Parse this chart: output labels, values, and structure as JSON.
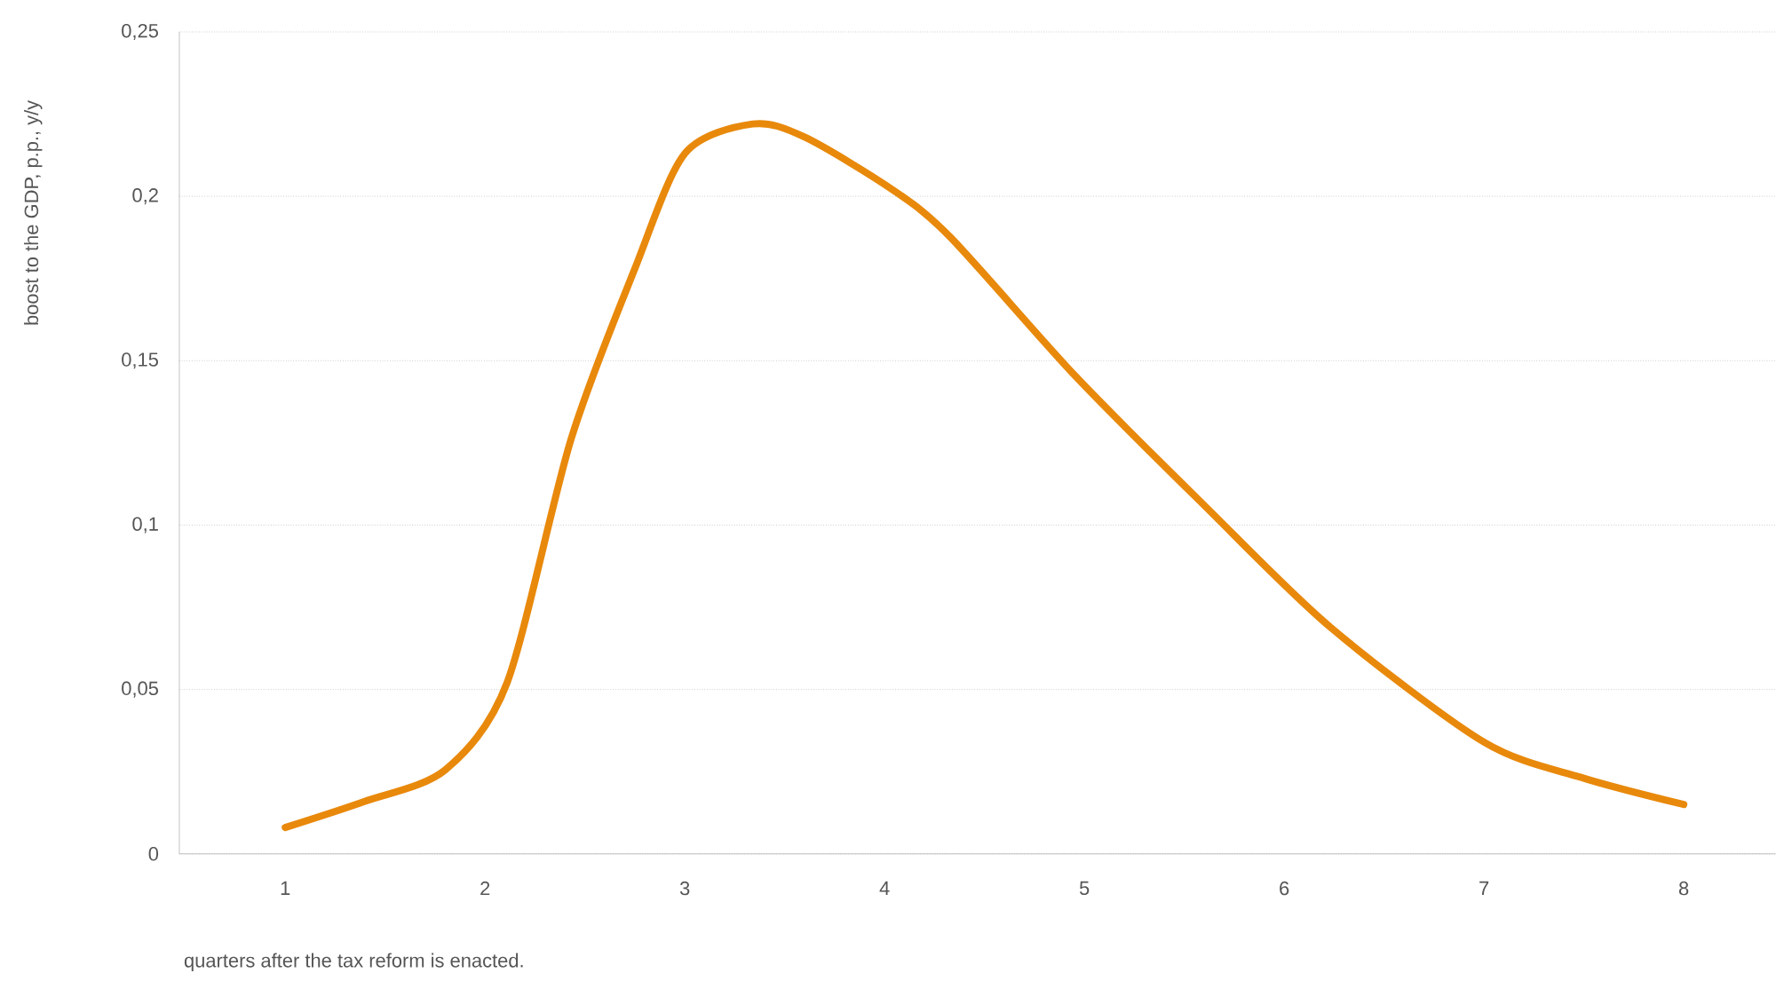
{
  "chart_data": {
    "type": "line",
    "ylabel": "boost to the GDP, p.p., y/y",
    "xlabel": "quarters after the tax reform is enacted.",
    "x": [
      1,
      1.4,
      1.8,
      2.11,
      2.43,
      2.75,
      3.0,
      3.34,
      3.6,
      4.04,
      4.33,
      4.96,
      5.6,
      6.23,
      7.0,
      7.5,
      8.0
    ],
    "series": [
      {
        "color": "#e8890c",
        "values": [
          0.008,
          0.016,
          0.0255,
          0.052,
          0.126,
          0.178,
          0.213,
          0.222,
          0.218,
          0.202,
          0.1875,
          0.145,
          0.106,
          0.069,
          0.034,
          0.023,
          0.015
        ]
      }
    ],
    "xlim": [
      0.47,
      8.46
    ],
    "ylim": [
      0,
      0.25
    ],
    "xticks": [
      1,
      2,
      3,
      4,
      5,
      6,
      7,
      8
    ],
    "yticks": [
      0,
      {
        "value": 0.05,
        "label": "0,05"
      },
      {
        "value": 0.1,
        "label": "0,1"
      },
      {
        "value": 0.15,
        "label": "0,15"
      },
      {
        "value": 0.2,
        "label": "0,2"
      },
      {
        "value": 0.25,
        "label": "0,25"
      }
    ],
    "grid": "y",
    "marker": "none",
    "line_style": "solid"
  }
}
